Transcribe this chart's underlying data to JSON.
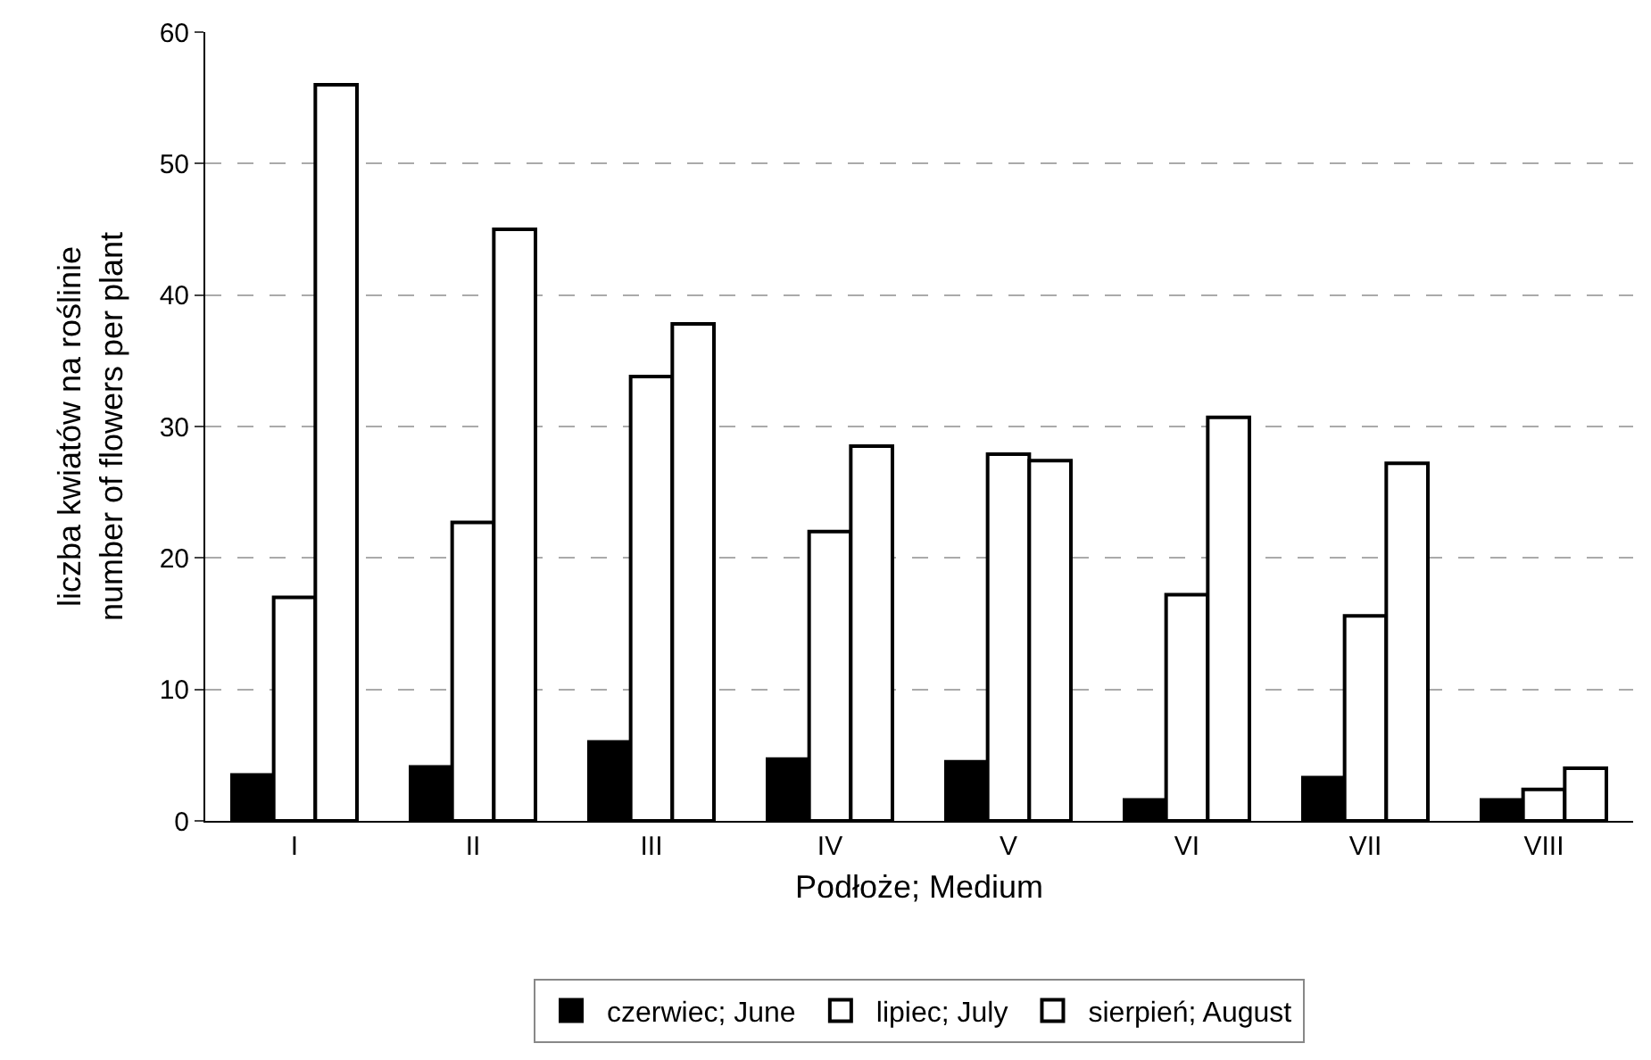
{
  "chart_data": {
    "type": "bar",
    "xlabel": "Podłoże; Medium",
    "ylabel": "liczba kwiatów na roślinie\nnumber of flowers per plant",
    "categories": [
      "I",
      "II",
      "III",
      "IV",
      "V",
      "VI",
      "VII",
      "VIII"
    ],
    "series": [
      {
        "name": "czerwiec; June",
        "color": "#000000",
        "values": [
          3.5,
          4.1,
          6.0,
          4.7,
          4.5,
          1.6,
          3.3,
          1.6
        ]
      },
      {
        "name": "lipiec; July",
        "color": "#ffffff",
        "values": [
          17,
          22.7,
          33.8,
          22.0,
          27.9,
          17.2,
          15.6,
          2.4
        ]
      },
      {
        "name": "sierpień; August",
        "color": "#ffffff",
        "values": [
          56,
          45,
          37.8,
          28.5,
          27.4,
          30.7,
          27.2,
          4.0
        ]
      }
    ],
    "ylim": [
      0,
      60
    ],
    "yticks": [
      0,
      10,
      20,
      30,
      40,
      50,
      60
    ],
    "grid": "y",
    "legend": "bottom"
  }
}
